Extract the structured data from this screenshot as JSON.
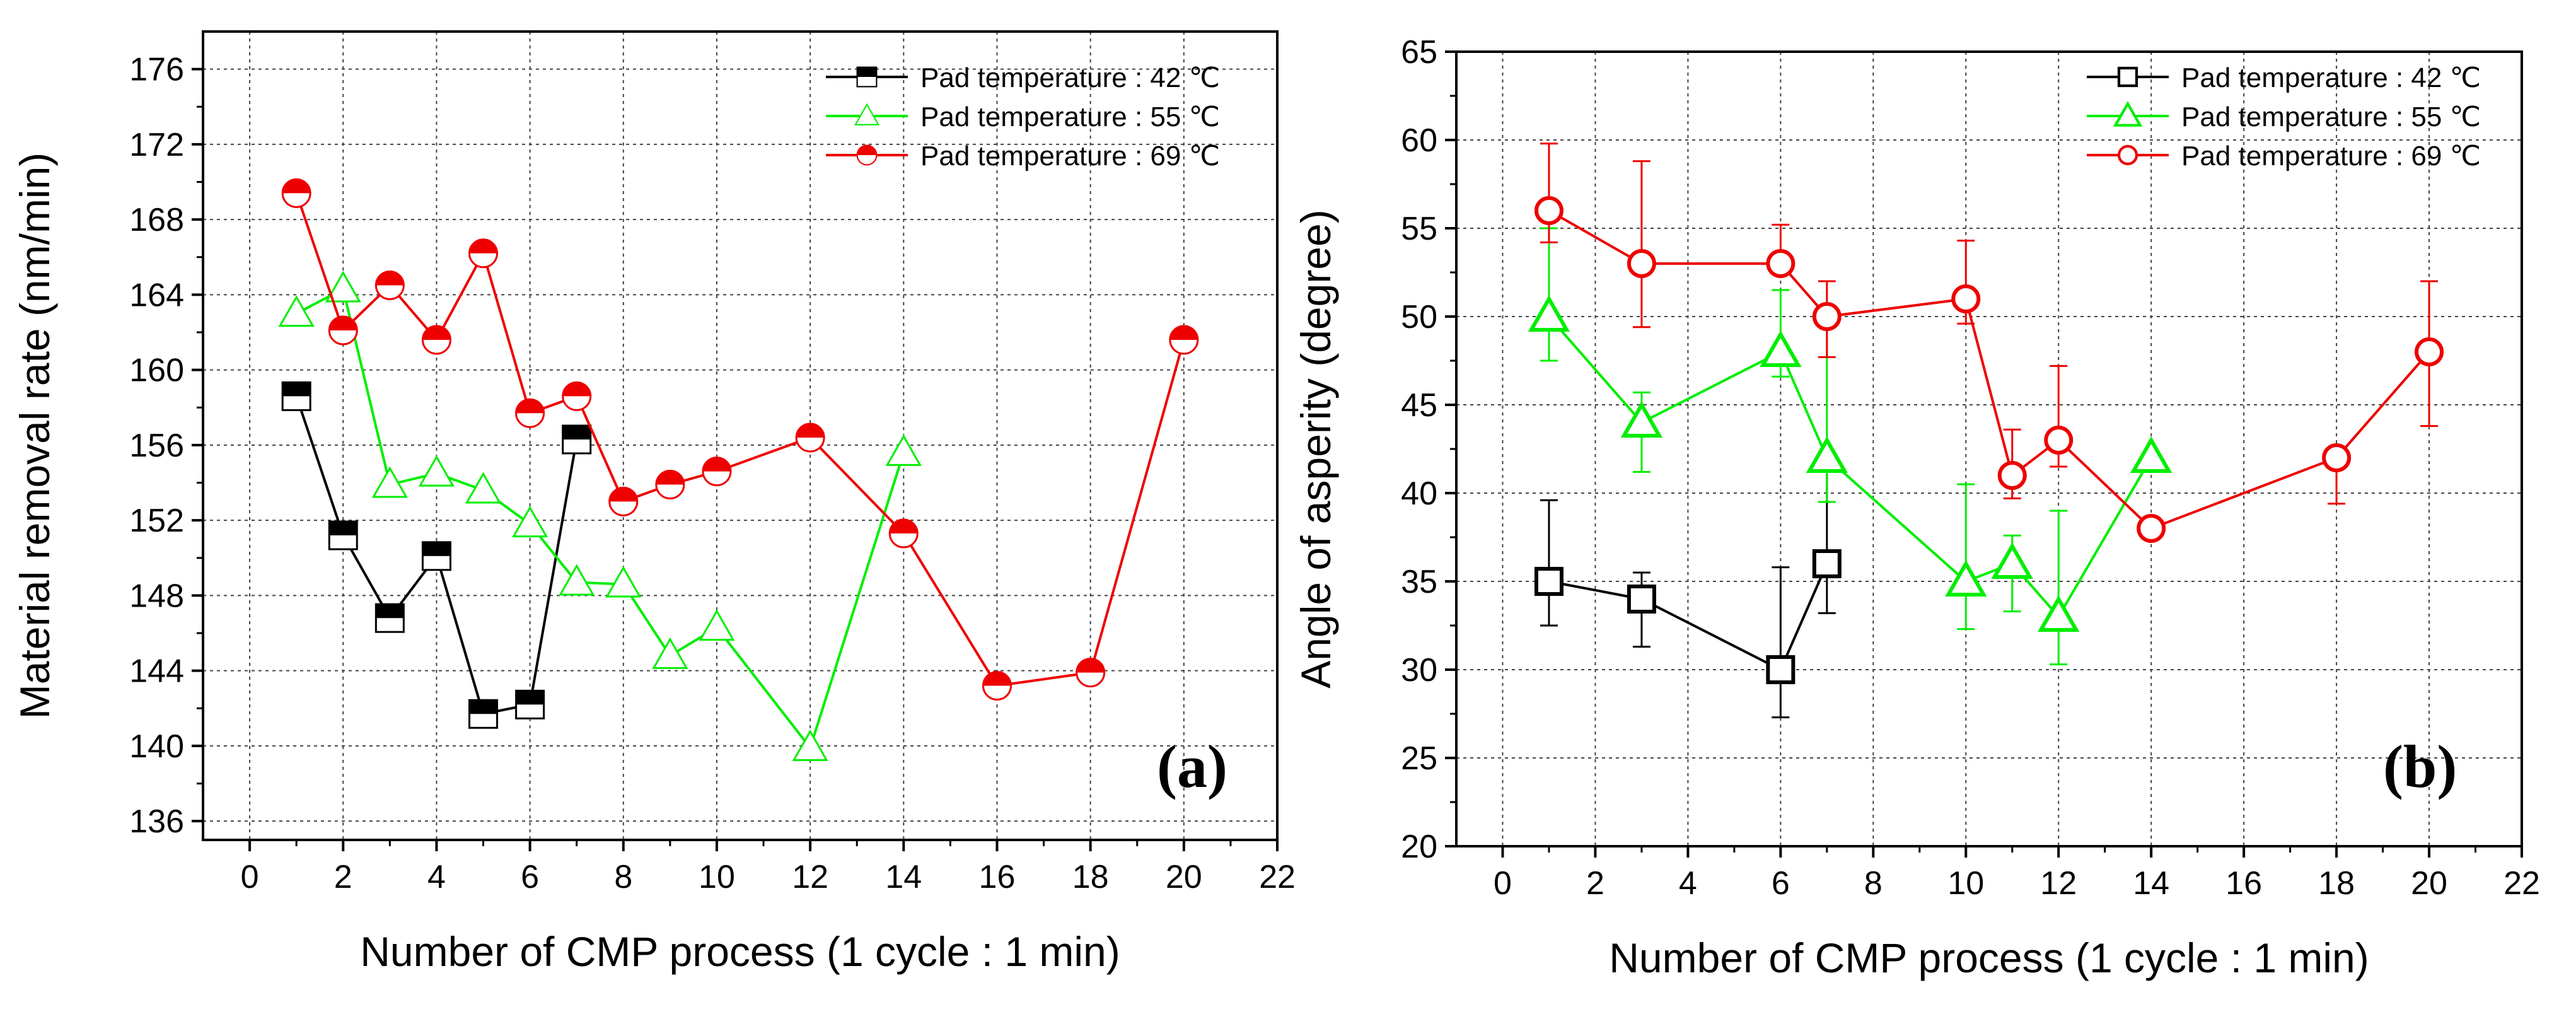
{
  "chart_data": [
    {
      "type": "line",
      "panel_label": "(a)",
      "xlabel": "Number of CMP process (1 cycle : 1 min)",
      "ylabel": "Material removal rate (nm/min)",
      "xlim": [
        -1,
        22
      ],
      "ylim": [
        135,
        178
      ],
      "x_ticks": [
        0,
        2,
        4,
        6,
        8,
        10,
        12,
        14,
        16,
        18,
        20,
        22
      ],
      "y_ticks": [
        136,
        140,
        144,
        148,
        152,
        156,
        160,
        164,
        168,
        172,
        176
      ],
      "grid": true,
      "legend_position": "top-right",
      "series": [
        {
          "name": "Pad temperature : 42 ℃",
          "color": "#000000",
          "marker": "half-square",
          "x": [
            1,
            2,
            3,
            4,
            5,
            6,
            7
          ],
          "y": [
            158.6,
            151.2,
            146.8,
            150.1,
            141.7,
            142.2,
            156.3
          ]
        },
        {
          "name": "Pad temperature : 55 ℃",
          "color": "#00ee00",
          "marker": "triangle",
          "x": [
            1,
            2,
            3,
            4,
            5,
            6,
            7,
            8,
            9,
            10,
            12,
            14
          ],
          "y": [
            163,
            164.3,
            153.9,
            154.5,
            153.6,
            151.8,
            148.7,
            148.6,
            144.8,
            146.3,
            139.9,
            155.6
          ]
        },
        {
          "name": "Pad temperature : 69 ℃",
          "color": "#ee0000",
          "marker": "half-circle",
          "x": [
            1,
            2,
            3,
            4,
            5,
            6,
            7,
            8,
            9,
            10,
            12,
            14,
            16,
            18,
            20
          ],
          "y": [
            169.4,
            162.1,
            164.5,
            161.6,
            166.2,
            157.7,
            158.6,
            153,
            153.9,
            154.6,
            156.4,
            151.3,
            143.2,
            143.9,
            161.6
          ]
        }
      ]
    },
    {
      "type": "line",
      "panel_label": "(b)",
      "xlabel": "Number of CMP process (1 cycle : 1 min)",
      "ylabel": "Angle of asperity (degree)",
      "xlim": [
        -1,
        22
      ],
      "ylim": [
        20,
        65
      ],
      "x_ticks": [
        0,
        2,
        4,
        6,
        8,
        10,
        12,
        14,
        16,
        18,
        20,
        22
      ],
      "y_ticks": [
        20,
        25,
        30,
        35,
        40,
        45,
        50,
        55,
        60,
        65
      ],
      "grid": true,
      "legend_position": "top-right",
      "series": [
        {
          "name": "Pad temperature : 42 ℃",
          "color": "#000000",
          "marker": "open-square",
          "x": [
            1,
            3,
            6,
            7
          ],
          "y": [
            35,
            34,
            30,
            36
          ],
          "err_up": [
            4.6,
            1.5,
            5.8,
            5.3
          ],
          "err_down": [
            2.5,
            2.7,
            2.7,
            2.8
          ]
        },
        {
          "name": "Pad temperature : 55 ℃",
          "color": "#00ee00",
          "marker": "open-triangle",
          "x": [
            1,
            3,
            6,
            7,
            10,
            11,
            12,
            14
          ],
          "y": [
            50,
            44,
            48,
            42,
            35,
            36,
            33,
            42
          ],
          "err_up": [
            5,
            1.7,
            3.5,
            8,
            5.5,
            1.6,
            6,
            0
          ],
          "err_down": [
            2.5,
            2.8,
            1.4,
            2.5,
            2.7,
            2.7,
            2.7,
            0
          ]
        },
        {
          "name": "Pad temperature : 69 ℃",
          "color": "#ee0000",
          "marker": "open-circle",
          "x": [
            1,
            3,
            6,
            7,
            10,
            11,
            12,
            14,
            18,
            20
          ],
          "y": [
            56,
            53,
            53,
            50,
            51,
            41,
            43,
            38,
            42,
            48
          ],
          "err_up": [
            3.8,
            5.8,
            2.2,
            2,
            3.3,
            2.6,
            4.2,
            0,
            0,
            4
          ],
          "err_down": [
            1.8,
            3.6,
            0,
            2.3,
            1.4,
            1.3,
            1.5,
            0,
            2.6,
            4.2
          ]
        }
      ]
    }
  ]
}
